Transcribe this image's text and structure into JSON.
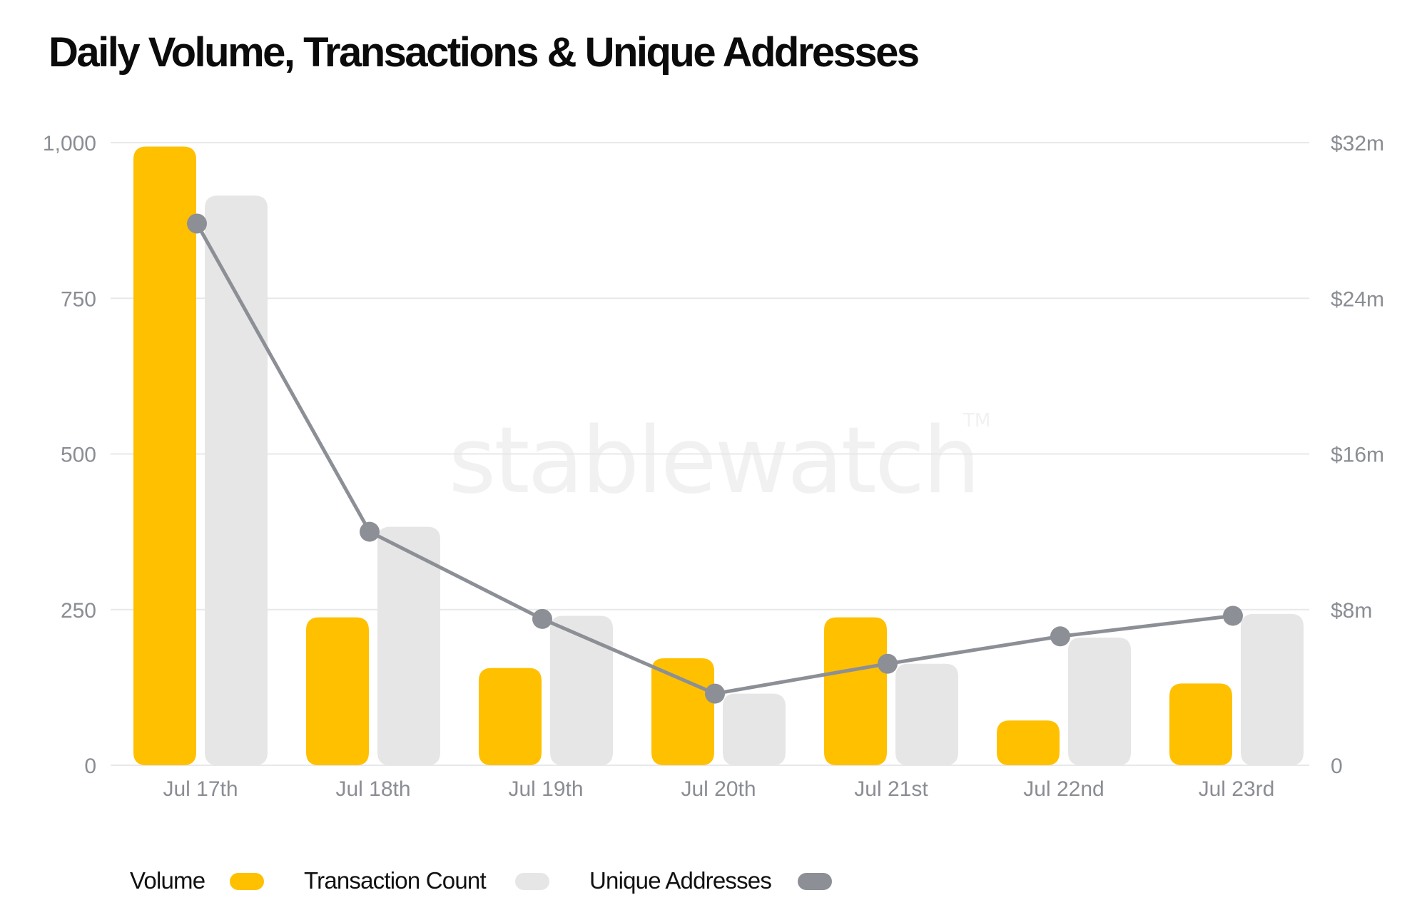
{
  "chart_data": {
    "type": "bar",
    "title": "Daily Volume, Transactions & Unique Addresses",
    "categories": [
      "Jul 17th",
      "Jul 18th",
      "Jul 19th",
      "Jul 20th",
      "Jul 21st",
      "Jul 22nd",
      "Jul 23rd"
    ],
    "series": [
      {
        "name": "Volume",
        "type": "bar",
        "axis": "right",
        "color": "#FFC000",
        "values": [
          31.8,
          7.6,
          5.0,
          5.5,
          7.6,
          2.3,
          4.2
        ]
      },
      {
        "name": "Transaction Count",
        "type": "bar",
        "axis": "left",
        "color": "#E6E6E6",
        "values": [
          915,
          383,
          240,
          115,
          163,
          205,
          243
        ]
      },
      {
        "name": "Unique Addresses",
        "type": "line",
        "axis": "left",
        "color": "#8C8F95",
        "values": [
          870,
          375,
          235,
          115,
          163,
          207,
          240
        ]
      }
    ],
    "left_axis": {
      "ylim": [
        0,
        1000
      ],
      "ticks": [
        "1,000",
        "750",
        "500",
        "250",
        "0"
      ]
    },
    "right_axis": {
      "ylim": [
        0,
        32
      ],
      "ticks": [
        "$32m",
        "$24m",
        "$16m",
        "$8m",
        "0"
      ]
    },
    "grid": true,
    "legend_position": "bottom-left",
    "watermark": "stablewatch",
    "watermark_mark": "TM"
  }
}
